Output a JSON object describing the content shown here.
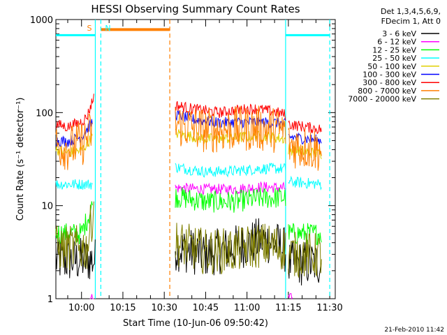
{
  "chart_data": {
    "type": "line",
    "title": "HESSI Observing Summary Count Rates",
    "xlabel": "Start Time (10-Jun-06 09:50:42)",
    "ylabel": "Count Rate (s⁻¹ detector⁻¹)",
    "x_ticks": [
      "10:00",
      "10:15",
      "10:30",
      "10:45",
      "11:00",
      "11:15",
      "11:30"
    ],
    "y_ticks": [
      "1",
      "10",
      "100",
      "1000"
    ],
    "y_scale": "log",
    "ylim": [
      1,
      1000
    ],
    "xlim": [
      "09:50:42",
      "11:32:00"
    ],
    "grid": false,
    "legend_position": "right",
    "legend_header": [
      "Det 1,3,4,5,6,9,",
      "FDecim 1, Att 0"
    ],
    "footer_date": "21-Feb-2010 11:42",
    "markers": [
      {
        "label": "S",
        "time": "10:05:00",
        "color": "#ff7f00"
      },
      {
        "label": "N",
        "time": "10:07:00",
        "color": "#00ffff"
      }
    ],
    "saa_bar": {
      "start": "10:07:00",
      "end": "10:32:00",
      "value": 780,
      "color": "#ff7f00"
    },
    "night_bars": [
      {
        "start": "09:50:42",
        "end": "10:05:00",
        "value": 680,
        "color": "#00ffff"
      },
      {
        "start": "11:14:00",
        "end": "11:30:00",
        "value": 680,
        "color": "#00ffff"
      }
    ],
    "vlines": [
      {
        "time": "10:05:00",
        "color": "#00ffff",
        "style": "solid"
      },
      {
        "time": "10:07:00",
        "color": "#00ffff",
        "style": "dashed"
      },
      {
        "time": "10:32:00",
        "color": "#ff7f00",
        "style": "dashed"
      },
      {
        "time": "11:14:00",
        "color": "#00ffff",
        "style": "solid"
      },
      {
        "time": "11:30:00",
        "color": "#00ffff",
        "style": "dashed"
      }
    ],
    "series": [
      {
        "name": "3 - 6 keV",
        "color": "#000000",
        "seg1": [
          [
            "09:50:42",
            2.6
          ],
          [
            "10:05:00",
            2.6
          ]
        ],
        "seg2": [
          [
            "10:34:00",
            3.5
          ],
          [
            "10:45:00",
            3.0
          ],
          [
            "10:55:00",
            3.5
          ],
          [
            "11:05:00",
            4.3
          ],
          [
            "11:10:00",
            4.0
          ],
          [
            "11:14:00",
            3.3
          ]
        ],
        "seg3": [
          [
            "11:15:00",
            2.4
          ],
          [
            "11:27:00",
            2.4
          ]
        ]
      },
      {
        "name": "6 - 12 keV",
        "color": "#ff00ff",
        "seg1": [
          [
            "10:03:00",
            1.0
          ],
          [
            "10:04:30",
            1.0
          ]
        ],
        "seg2": [
          [
            "10:34:00",
            15.5
          ],
          [
            "10:45:00",
            15.0
          ],
          [
            "10:55:00",
            15.0
          ],
          [
            "11:05:00",
            15.8
          ],
          [
            "11:14:00",
            15.5
          ]
        ],
        "seg3": [
          [
            "11:15:00",
            1.0
          ],
          [
            "11:16:30",
            1.0
          ]
        ]
      },
      {
        "name": "12 - 25 keV",
        "color": "#00ff00",
        "seg1": [
          [
            "09:50:42",
            5.0
          ],
          [
            "10:00:00",
            5.0
          ],
          [
            "10:04:00",
            10.0
          ]
        ],
        "seg2": [
          [
            "10:34:00",
            12.5
          ],
          [
            "10:45:00",
            11.0
          ],
          [
            "10:55:00",
            11.0
          ],
          [
            "11:05:00",
            12.0
          ],
          [
            "11:14:00",
            12.3
          ]
        ],
        "seg3": [
          [
            "11:15:00",
            5.0
          ],
          [
            "11:27:00",
            5.0
          ]
        ]
      },
      {
        "name": "25 - 50 keV",
        "color": "#00ffff",
        "seg1": [
          [
            "09:50:42",
            17.0
          ],
          [
            "10:04:00",
            17.0
          ]
        ],
        "seg2": [
          [
            "10:34:00",
            26.0
          ],
          [
            "10:45:00",
            23.0
          ],
          [
            "10:55:00",
            23.5
          ],
          [
            "11:05:00",
            25.0
          ],
          [
            "11:14:00",
            25.0
          ]
        ],
        "seg3": [
          [
            "11:15:00",
            18.0
          ],
          [
            "11:27:00",
            17.0
          ]
        ]
      },
      {
        "name": "50 - 100 keV",
        "color": "#e0d000",
        "seg1": [
          [
            "09:50:42",
            40.0
          ],
          [
            "09:55:00",
            37.0
          ],
          [
            "10:00:00",
            39.0
          ],
          [
            "10:04:00",
            55.0
          ]
        ],
        "seg2": [
          [
            "10:34:00",
            60.0
          ],
          [
            "10:45:00",
            52.0
          ],
          [
            "10:55:00",
            53.0
          ],
          [
            "11:02:00",
            56.0
          ],
          [
            "11:10:00",
            54.0
          ],
          [
            "11:14:00",
            52.0
          ]
        ],
        "seg3": [
          [
            "11:15:00",
            40.0
          ],
          [
            "11:27:00",
            36.0
          ]
        ]
      },
      {
        "name": "100 - 300 keV",
        "color": "#0000ff",
        "seg1": [
          [
            "09:50:42",
            50.0
          ],
          [
            "09:55:00",
            49.0
          ],
          [
            "10:00:00",
            55.0
          ],
          [
            "10:04:00",
            80.0
          ]
        ],
        "seg2": [
          [
            "10:34:00",
            96.0
          ],
          [
            "10:40:00",
            85.0
          ],
          [
            "10:50:00",
            78.0
          ],
          [
            "11:00:00",
            79.0
          ],
          [
            "11:10:00",
            78.0
          ],
          [
            "11:14:00",
            75.0
          ]
        ],
        "seg3": [
          [
            "11:15:00",
            55.0
          ],
          [
            "11:27:00",
            50.0
          ]
        ]
      },
      {
        "name": "300 - 800 keV",
        "color": "#ff0000",
        "seg1": [
          [
            "09:50:42",
            75.0
          ],
          [
            "09:55:00",
            70.0
          ],
          [
            "10:00:00",
            80.0
          ],
          [
            "10:02:00",
            90.0
          ],
          [
            "10:04:30",
            150.0
          ]
        ],
        "seg2": [
          [
            "10:34:00",
            120.0
          ],
          [
            "10:40:00",
            110.0
          ],
          [
            "10:50:00",
            100.0
          ],
          [
            "10:58:00",
            108.0
          ],
          [
            "11:03:00",
            110.0
          ],
          [
            "11:10:00",
            102.0
          ],
          [
            "11:14:00",
            95.0
          ]
        ],
        "seg3": [
          [
            "11:15:00",
            75.0
          ],
          [
            "11:27:00",
            66.0
          ]
        ]
      },
      {
        "name": "800 - 7000 keV",
        "color": "#ff7f00",
        "seg1": [
          [
            "09:50:42",
            45.0
          ],
          [
            "09:55:00",
            42.0
          ],
          [
            "10:00:00",
            46.0
          ],
          [
            "10:04:00",
            65.0
          ]
        ],
        "seg2": [
          [
            "10:34:00",
            75.0
          ],
          [
            "10:45:00",
            65.0
          ],
          [
            "10:55:00",
            66.0
          ],
          [
            "11:03:00",
            68.0
          ],
          [
            "11:14:00",
            64.0
          ]
        ],
        "seg3": [
          [
            "11:15:00",
            45.0
          ],
          [
            "11:27:00",
            40.0
          ]
        ]
      },
      {
        "name": "7000 - 20000 keV",
        "color": "#808000",
        "seg1": [
          [
            "09:50:42",
            3.5
          ],
          [
            "10:02:00",
            3.5
          ],
          [
            "10:04:30",
            10.0
          ]
        ],
        "seg2": [
          [
            "10:34:00",
            4.0
          ],
          [
            "10:45:00",
            3.2
          ],
          [
            "10:55:00",
            3.3
          ],
          [
            "11:05:00",
            3.8
          ],
          [
            "11:14:00",
            3.5
          ]
        ],
        "seg3": [
          [
            "11:15:00",
            3.0
          ],
          [
            "11:27:00",
            2.9
          ]
        ]
      }
    ]
  }
}
